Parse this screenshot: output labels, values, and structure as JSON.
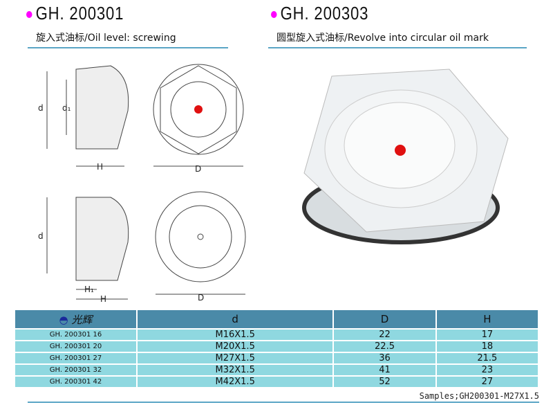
{
  "left": {
    "title": "GH. 200301",
    "subtitle": "旋入式油标/Oil level: screwing",
    "labels": {
      "d": "d",
      "d1": "d₁",
      "H": "H",
      "D": "D",
      "d2": "d",
      "H1": "H₁",
      "H2": "H",
      "D2": "D"
    }
  },
  "right": {
    "title": "GH. 200303",
    "subtitle": "圆型旋入式油标/Revolve into circular oil mark"
  },
  "table": {
    "logo_text": "光辉",
    "headers": [
      "d",
      "D",
      "H"
    ],
    "rows": [
      [
        "GH. 200301 16",
        "M16X1.5",
        "22",
        "17"
      ],
      [
        "GH. 200301 20",
        "M20X1.5",
        "22.5",
        "18"
      ],
      [
        "GH. 200301 27",
        "M27X1.5",
        "36",
        "21.5"
      ],
      [
        "GH. 200301 32",
        "M32X1.5",
        "41",
        "23"
      ],
      [
        "GH. 200301 42",
        "M42X1.5",
        "52",
        "27"
      ]
    ]
  },
  "footer": {
    "samples": "Samples;GH200301-M27X1.5"
  },
  "colors": {
    "bullet": "#ff00ff",
    "header": "#4a8aa8",
    "row": "#8fd8e0",
    "accent_line": "#5aa5c5",
    "dot": "#e01010"
  }
}
